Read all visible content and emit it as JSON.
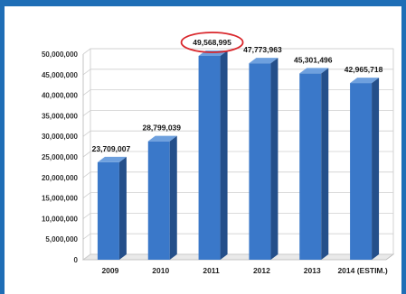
{
  "colors": {
    "frame": "#1f6eb6",
    "bar_front": "#3a78c9",
    "bar_side": "#244f8a",
    "bar_top": "#6ea0de",
    "highlight": "#d9262b"
  },
  "chart_data": {
    "type": "bar",
    "title": "",
    "xlabel": "",
    "ylabel": "",
    "ylim": [
      0,
      50000000
    ],
    "ytick_step": 5000000,
    "y_tick_labels": [
      "0",
      "5,000,000",
      "10,000,000",
      "15,000,000",
      "20,000,000",
      "25,000,000",
      "30,000,000",
      "35,000,000",
      "40,000,000",
      "45,000,000",
      "50,000,000"
    ],
    "categories": [
      "2009",
      "2010",
      "2011",
      "2012",
      "2013",
      "2014 (ESTIM.)"
    ],
    "values": [
      23709007,
      28799039,
      49568995,
      47773963,
      45301496,
      42965718
    ],
    "data_labels": [
      "23,709,007",
      "28,799,039",
      "49,568,995",
      "47,773,963",
      "45,301,496",
      "42,965,718"
    ],
    "highlighted_index": 2,
    "grid": true,
    "legend": "none"
  }
}
